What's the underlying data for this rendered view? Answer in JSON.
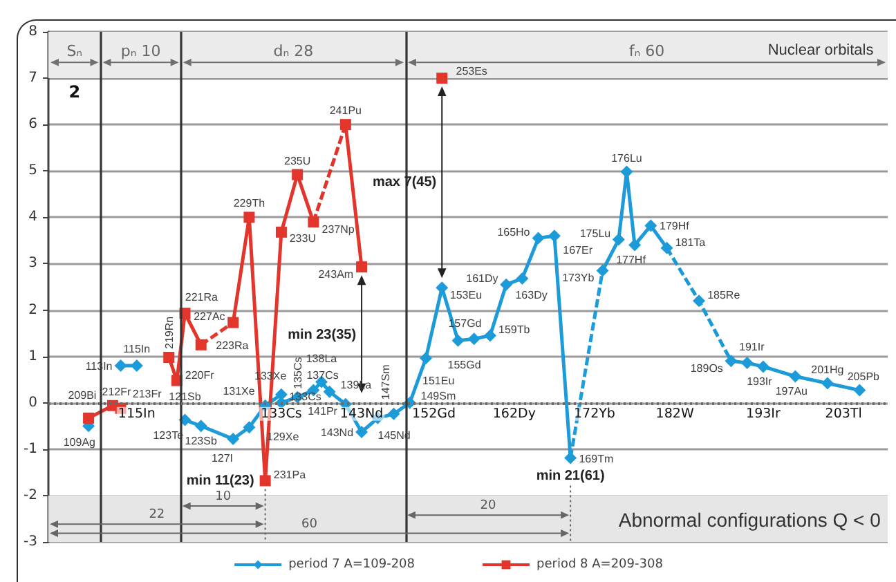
{
  "chart_data": {
    "type": "line",
    "xlim": [
      104,
      208.5
    ],
    "xticks": [
      {
        "value": 115,
        "label": "115In"
      },
      {
        "value": 133,
        "label": "133Cs"
      },
      {
        "value": 143,
        "label": "143Nd"
      },
      {
        "value": 152,
        "label": "152Gd"
      },
      {
        "value": 162,
        "label": "162Dy"
      },
      {
        "value": 172,
        "label": "172Yb"
      },
      {
        "value": 182,
        "label": "182W"
      },
      {
        "value": 193,
        "label": "193Ir"
      },
      {
        "value": 203,
        "label": "203Tl"
      }
    ],
    "ylim": [
      -3,
      8
    ],
    "yticks": [
      -3,
      -2,
      -1,
      0,
      1,
      2,
      3,
      4,
      5,
      6,
      7,
      8
    ],
    "grid": "y",
    "legend": "bottom",
    "series": [
      {
        "name": "period 7 A=109-208",
        "color": "#1d9bd9",
        "marker": "diamond",
        "x": [
          109,
          111,
          113,
          115,
          118,
          121,
          123,
          127,
          129,
          131,
          133,
          133,
          135,
          137,
          138,
          139,
          141,
          143,
          145,
          147,
          149,
          151,
          153,
          155,
          157,
          159,
          161,
          163,
          165,
          167,
          169,
          171,
          173,
          175,
          176,
          177,
          179,
          181,
          183,
          185,
          187,
          189,
          191,
          193,
          197,
          201,
          205
        ],
        "values": [
          -0.5,
          null,
          0.8,
          0.8,
          null,
          -0.37,
          -0.5,
          -0.78,
          -0.53,
          -0.06,
          0.18,
          0.0,
          0.12,
          0.27,
          0.45,
          0.24,
          -0.03,
          -0.63,
          -0.33,
          -0.24,
          0.0,
          0.96,
          2.48,
          1.34,
          1.38,
          1.45,
          2.55,
          2.68,
          3.55,
          3.6,
          -1.19,
          null,
          2.85,
          3.52,
          4.98,
          3.4,
          3.82,
          3.34,
          null,
          2.2,
          null,
          0.9,
          0.86,
          0.78,
          0.57,
          0.42,
          0.27
        ]
      },
      {
        "name": "period 8 A=209-308",
        "color": "#e2352b",
        "marker": "square",
        "x": [
          109,
          112,
          113,
          116,
          119,
          120,
          121,
          123,
          125,
          127,
          129,
          131,
          133,
          135,
          137,
          139,
          141,
          143,
          148,
          153
        ],
        "values": [
          -0.33,
          -0.06,
          -0.12,
          null,
          0.98,
          0.48,
          1.93,
          1.25,
          null,
          1.73,
          4.0,
          -1.68,
          3.68,
          4.92,
          3.9,
          null,
          6.0,
          2.93,
          null,
          7.0
        ]
      },
      {
        "color": "#1f9ddb",
        "line_style": "dashed",
        "marker": "none",
        "x": [
          169,
          173
        ],
        "values": [
          -1.19,
          2.85
        ]
      },
      {
        "color": "#1b99d7",
        "line_style": "dashed",
        "marker": "none",
        "x": [
          181,
          185,
          189
        ],
        "values": [
          3.34,
          2.2,
          0.9
        ]
      },
      {
        "color": "#e4372d",
        "line_style": "dashed",
        "marker": "none",
        "x": [
          123,
          127
        ],
        "values": [
          1.25,
          1.73
        ]
      },
      {
        "color": "#e03329",
        "line_style": "dashed",
        "marker": "none",
        "x": [
          137,
          141
        ],
        "values": [
          3.9,
          6.0
        ]
      }
    ],
    "ref_lines": [
      {
        "axis": "x",
        "value": 110.5,
        "color": "#333333"
      },
      {
        "axis": "x",
        "value": 120.5,
        "color": "#333333"
      },
      {
        "axis": "x",
        "value": 148.5,
        "color": "#333333"
      },
      {
        "axis": "y",
        "value": 0,
        "color": "#6a6a6a",
        "line_style": "dotted"
      }
    ],
    "bands": [
      {
        "axis": "y",
        "from": 7,
        "to": 8,
        "color": "#ececec"
      },
      {
        "axis": "y",
        "from": -3,
        "to": -2,
        "label": "Abnormal configurations Q < 0",
        "color": "#e6e6e6"
      }
    ],
    "annotations": [
      "Sₙ",
      "2",
      "pₙ 10",
      "dₙ 28",
      "fₙ 60",
      "Nuclear orbitals",
      "10",
      "20",
      "22",
      "60",
      "max 7(45)",
      "min 23(35)",
      {
        "text": "min 11(23)",
        "x": 131,
        "y": -1.68
      },
      {
        "text": "min 21(61)",
        "x": 169,
        "y": -1.19
      },
      {
        "text": "109Ag",
        "x": 109,
        "y": -0.5
      },
      {
        "text": "113In",
        "x": 113,
        "y": 0.8
      },
      {
        "text": "115In",
        "x": 115,
        "y": 0.8
      },
      {
        "text": "121Sb",
        "x": 121,
        "y": -0.37
      },
      {
        "text": "123Sb",
        "x": 123,
        "y": -0.5
      },
      {
        "text": "123Te",
        "x": 123,
        "y": -0.5
      },
      {
        "text": "127I",
        "x": 127,
        "y": -0.78
      },
      {
        "text": "129Xe",
        "x": 129,
        "y": -0.53
      },
      {
        "text": "131Xe",
        "x": 131,
        "y": -0.06
      },
      {
        "text": "133Xe",
        "x": 133,
        "y": 0.18
      },
      {
        "text": "133Cs",
        "x": 133,
        "y": 0.0
      },
      {
        "text": "135Cs",
        "x": 135,
        "y": 0.12
      },
      {
        "text": "137Cs",
        "x": 137,
        "y": 0.27
      },
      {
        "text": "138La",
        "x": 138,
        "y": 0.45
      },
      {
        "text": "139La",
        "x": 139,
        "y": 0.24
      },
      {
        "text": "141Pr",
        "x": 141,
        "y": -0.03
      },
      {
        "text": "143Nd",
        "x": 143,
        "y": -0.63
      },
      {
        "text": "145Nd",
        "x": 145,
        "y": -0.33
      },
      {
        "text": "147Sm",
        "x": 147,
        "y": -0.24
      },
      {
        "text": "149Sm",
        "x": 149,
        "y": 0.0
      },
      {
        "text": "151Eu",
        "x": 151,
        "y": 0.96
      },
      {
        "text": "153Eu",
        "x": 153,
        "y": 2.48
      },
      {
        "text": "155Gd",
        "x": 155,
        "y": 1.34
      },
      {
        "text": "157Gd",
        "x": 157,
        "y": 1.38
      },
      {
        "text": "159Tb",
        "x": 159,
        "y": 1.45
      },
      {
        "text": "161Dy",
        "x": 161,
        "y": 2.55
      },
      {
        "text": "163Dy",
        "x": 163,
        "y": 2.68
      },
      {
        "text": "165Ho",
        "x": 165,
        "y": 3.55
      },
      {
        "text": "167Er",
        "x": 167,
        "y": 3.6
      },
      {
        "text": "169Tm",
        "x": 169,
        "y": -1.19
      },
      {
        "text": "173Yb",
        "x": 173,
        "y": 2.85
      },
      {
        "text": "175Lu",
        "x": 175,
        "y": 3.52
      },
      {
        "text": "176Lu",
        "x": 176,
        "y": 4.98
      },
      {
        "text": "177Hf",
        "x": 177,
        "y": 3.4
      },
      {
        "text": "179Hf",
        "x": 179,
        "y": 3.82
      },
      {
        "text": "181Ta",
        "x": 181,
        "y": 3.34
      },
      {
        "text": "185Re",
        "x": 185,
        "y": 2.2
      },
      {
        "text": "189Os",
        "x": 189,
        "y": 0.9
      },
      {
        "text": "191Ir",
        "x": 191,
        "y": 0.86
      },
      {
        "text": "193Ir",
        "x": 193,
        "y": 0.78
      },
      {
        "text": "197Au",
        "x": 197,
        "y": 0.57
      },
      {
        "text": "201Hg",
        "x": 201,
        "y": 0.42
      },
      {
        "text": "205Pb",
        "x": 205,
        "y": 0.27
      },
      {
        "text": "209Bi",
        "x": 109,
        "y": -0.33
      },
      {
        "text": "212Fr",
        "x": 112,
        "y": -0.06
      },
      {
        "text": "213Fr",
        "x": 113,
        "y": -0.12
      },
      {
        "text": "219Rn",
        "x": 119,
        "y": 0.98
      },
      {
        "text": "220Fr",
        "x": 120,
        "y": 0.48
      },
      {
        "text": "221Ra",
        "x": 121,
        "y": 1.93
      },
      {
        "text": "223Ra",
        "x": 123,
        "y": 1.25
      },
      {
        "text": "227Ac",
        "x": 127,
        "y": 1.73
      },
      {
        "text": "229Th",
        "x": 129,
        "y": 4.0
      },
      {
        "text": "231Pa",
        "x": 131,
        "y": -1.68
      },
      {
        "text": "233U",
        "x": 133,
        "y": 3.68
      },
      {
        "text": "235U",
        "x": 135,
        "y": 4.92
      },
      {
        "text": "237Np",
        "x": 137,
        "y": 3.9
      },
      {
        "text": "241Pu",
        "x": 141,
        "y": 6.0
      },
      {
        "text": "243Am",
        "x": 143,
        "y": 2.93
      },
      {
        "text": "253Es",
        "x": 153,
        "y": 7.0
      }
    ]
  }
}
